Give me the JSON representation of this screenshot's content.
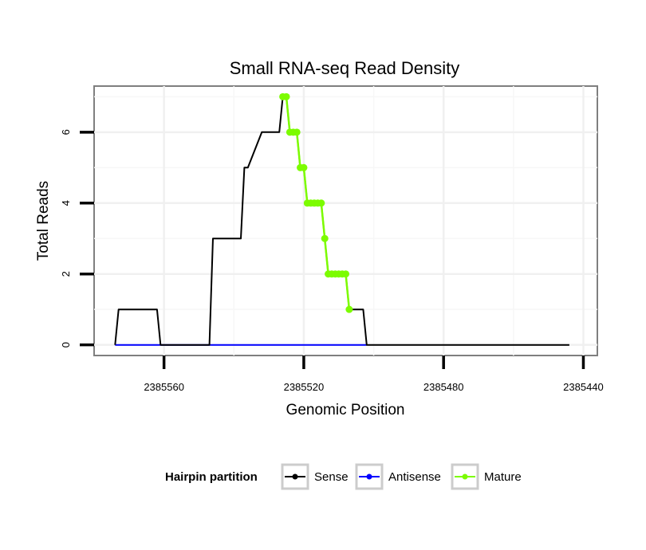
{
  "chart_data": {
    "type": "line",
    "title": "Small RNA-seq Read Density",
    "xlabel": "Genomic Position",
    "ylabel": "Total Reads",
    "x_reversed": true,
    "xlim": [
      2385580,
      2385436
    ],
    "ylim": [
      -0.3,
      7.3
    ],
    "x_ticks": [
      2385560,
      2385520,
      2385480,
      2385440
    ],
    "x_tick_labels": [
      "2385560",
      "2385520",
      "2385480",
      "2385440"
    ],
    "y_ticks": [
      0,
      2,
      4,
      6
    ],
    "y_tick_labels": [
      "0",
      "2",
      "4",
      "6"
    ],
    "grid": true,
    "legend_position": "bottom",
    "legend": {
      "title": "Hairpin partition",
      "entries": [
        "Sense",
        "Antisense",
        "Mature"
      ]
    },
    "colors": {
      "Sense": "#000000",
      "Antisense": "#0000ff",
      "Mature": "#7cfc00"
    },
    "series": [
      {
        "name": "Sense",
        "x": [
          2385574,
          2385573,
          2385572,
          2385567,
          2385562,
          2385561,
          2385547,
          2385546,
          2385539,
          2385538,
          2385537,
          2385536,
          2385532,
          2385531,
          2385530,
          2385529,
          2385528,
          2385527,
          2385526,
          2385525,
          2385524,
          2385523,
          2385522,
          2385521,
          2385520,
          2385519,
          2385518,
          2385517,
          2385516,
          2385515,
          2385514,
          2385513,
          2385512,
          2385511,
          2385510,
          2385509,
          2385508,
          2385507,
          2385506,
          2385505,
          2385504,
          2385503,
          2385502,
          2385501,
          2385500,
          2385499,
          2385498,
          2385497,
          2385496,
          2385444
        ],
        "values": [
          0,
          1,
          1,
          1,
          1,
          0,
          0,
          3,
          3,
          3,
          5,
          5,
          6,
          6,
          6,
          6,
          6,
          6,
          7,
          7,
          6,
          6,
          6,
          5,
          5,
          4,
          4,
          4,
          4,
          4,
          3,
          2,
          2,
          2,
          2,
          2,
          2,
          1,
          1,
          1,
          1,
          1,
          0,
          0,
          0,
          0,
          0,
          0,
          0,
          0
        ]
      },
      {
        "name": "Antisense",
        "x": [
          2385574,
          2385502
        ],
        "values": [
          0,
          0
        ]
      },
      {
        "name": "Mature",
        "x": [
          2385526,
          2385525,
          2385524,
          2385523,
          2385522,
          2385521,
          2385520,
          2385519,
          2385518,
          2385517,
          2385516,
          2385515,
          2385514,
          2385513,
          2385512,
          2385511,
          2385510,
          2385509,
          2385508,
          2385507
        ],
        "values": [
          7,
          7,
          6,
          6,
          6,
          5,
          5,
          4,
          4,
          4,
          4,
          4,
          3,
          2,
          2,
          2,
          2,
          2,
          2,
          1
        ]
      }
    ]
  }
}
